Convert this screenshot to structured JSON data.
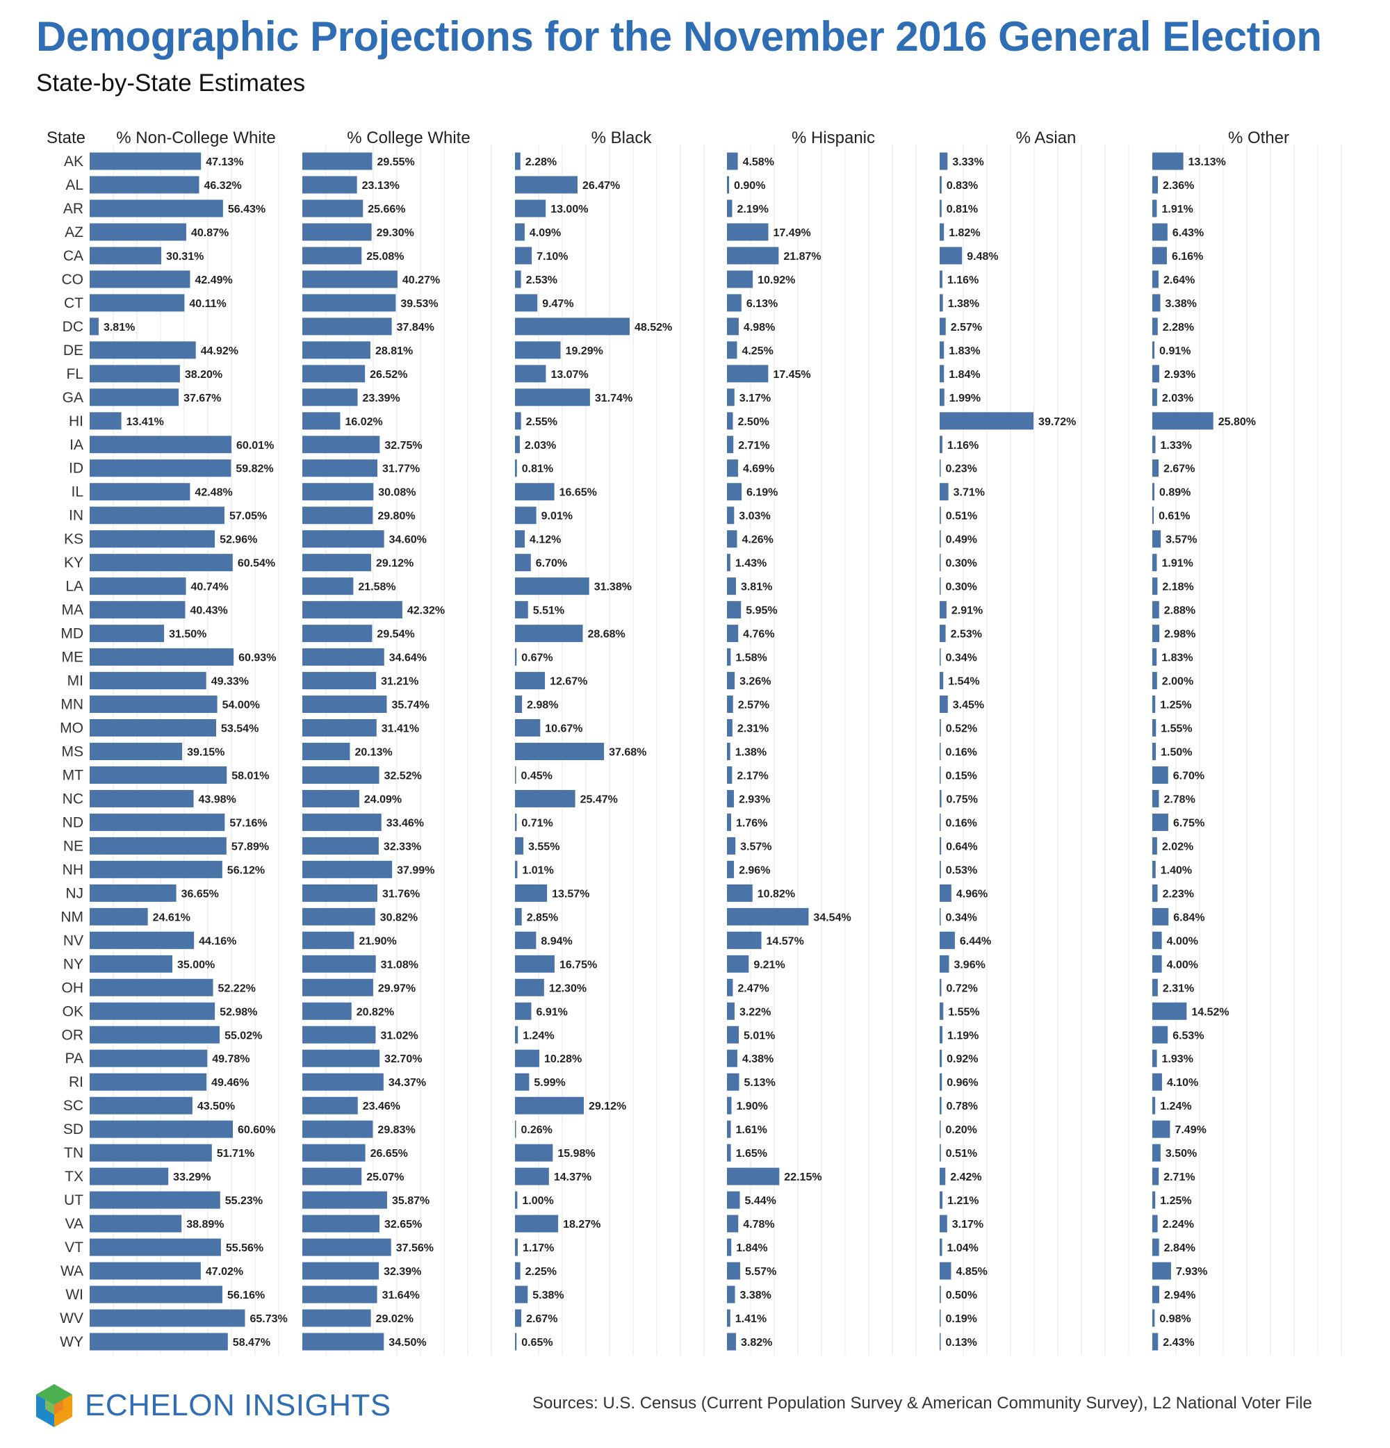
{
  "title": "Demographic Projections for the November 2016 General Election",
  "subtitle": "State-by-State Estimates",
  "brand": "ECHELON INSIGHTS",
  "sources": "Sources: U.S. Census (Current Population Survey & American Community Survey), L2 National Voter File",
  "colors": {
    "bar": "#4a74a8",
    "title": "#2f6db5",
    "grid": "#e6e6e6"
  },
  "chart_data": {
    "type": "bar",
    "orientation": "horizontal",
    "row_header": "State",
    "categories": [
      "AK",
      "AL",
      "AR",
      "AZ",
      "CA",
      "CO",
      "CT",
      "DC",
      "DE",
      "FL",
      "GA",
      "HI",
      "IA",
      "ID",
      "IL",
      "IN",
      "KS",
      "KY",
      "LA",
      "MA",
      "MD",
      "ME",
      "MI",
      "MN",
      "MO",
      "MS",
      "MT",
      "NC",
      "ND",
      "NE",
      "NH",
      "NJ",
      "NM",
      "NV",
      "NY",
      "OH",
      "OK",
      "OR",
      "PA",
      "RI",
      "SC",
      "SD",
      "TN",
      "TX",
      "UT",
      "VA",
      "VT",
      "WA",
      "WI",
      "WV",
      "WY"
    ],
    "series": [
      {
        "name": "% Non-College White",
        "values": [
          47.13,
          46.32,
          56.43,
          40.87,
          30.31,
          42.49,
          40.11,
          3.81,
          44.92,
          38.2,
          37.67,
          13.41,
          60.01,
          59.82,
          42.48,
          57.05,
          52.96,
          60.54,
          40.74,
          40.43,
          31.5,
          60.93,
          49.33,
          54.0,
          53.54,
          39.15,
          58.01,
          43.98,
          57.16,
          57.89,
          56.12,
          36.65,
          24.61,
          44.16,
          35.0,
          52.22,
          52.98,
          55.02,
          49.78,
          49.46,
          43.5,
          60.6,
          51.71,
          33.29,
          55.23,
          38.89,
          55.56,
          47.02,
          56.16,
          65.73,
          58.47
        ]
      },
      {
        "name": "% College White",
        "values": [
          29.55,
          23.13,
          25.66,
          29.3,
          25.08,
          40.27,
          39.53,
          37.84,
          28.81,
          26.52,
          23.39,
          16.02,
          32.75,
          31.77,
          30.08,
          29.8,
          34.6,
          29.12,
          21.58,
          42.32,
          29.54,
          34.64,
          31.21,
          35.74,
          31.41,
          20.13,
          32.52,
          24.09,
          33.46,
          32.33,
          37.99,
          31.76,
          30.82,
          21.9,
          31.08,
          29.97,
          20.82,
          31.02,
          32.7,
          34.37,
          23.46,
          29.83,
          26.65,
          25.07,
          35.87,
          32.65,
          37.56,
          32.39,
          31.64,
          29.02,
          34.5
        ]
      },
      {
        "name": "% Black",
        "values": [
          2.28,
          26.47,
          13.0,
          4.09,
          7.1,
          2.53,
          9.47,
          48.52,
          19.29,
          13.07,
          31.74,
          2.55,
          2.03,
          0.81,
          16.65,
          9.01,
          4.12,
          6.7,
          31.38,
          5.51,
          28.68,
          0.67,
          12.67,
          2.98,
          10.67,
          37.68,
          0.45,
          25.47,
          0.71,
          3.55,
          1.01,
          13.57,
          2.85,
          8.94,
          16.75,
          12.3,
          6.91,
          1.24,
          10.28,
          5.99,
          29.12,
          0.26,
          15.98,
          14.37,
          1.0,
          18.27,
          1.17,
          2.25,
          5.38,
          2.67,
          0.65
        ]
      },
      {
        "name": "% Hispanic",
        "values": [
          4.58,
          0.9,
          2.19,
          17.49,
          21.87,
          10.92,
          6.13,
          4.98,
          4.25,
          17.45,
          3.17,
          2.5,
          2.71,
          4.69,
          6.19,
          3.03,
          4.26,
          1.43,
          3.81,
          5.95,
          4.76,
          1.58,
          3.26,
          2.57,
          2.31,
          1.38,
          2.17,
          2.93,
          1.76,
          3.57,
          2.96,
          10.82,
          34.54,
          14.57,
          9.21,
          2.47,
          3.22,
          5.01,
          4.38,
          5.13,
          1.9,
          1.61,
          1.65,
          22.15,
          5.44,
          4.78,
          1.84,
          5.57,
          3.38,
          1.41,
          3.82
        ]
      },
      {
        "name": "% Asian",
        "values": [
          3.33,
          0.83,
          0.81,
          1.82,
          9.48,
          1.16,
          1.38,
          2.57,
          1.83,
          1.84,
          1.99,
          39.72,
          1.16,
          0.23,
          3.71,
          0.51,
          0.49,
          0.3,
          0.3,
          2.91,
          2.53,
          0.34,
          1.54,
          3.45,
          0.52,
          0.16,
          0.15,
          0.75,
          0.16,
          0.64,
          0.53,
          4.96,
          0.34,
          6.44,
          3.96,
          0.72,
          1.55,
          1.19,
          0.92,
          0.96,
          0.78,
          0.2,
          0.51,
          2.42,
          1.21,
          3.17,
          1.04,
          4.85,
          0.5,
          0.19,
          0.13
        ]
      },
      {
        "name": "% Other",
        "values": [
          13.13,
          2.36,
          1.91,
          6.43,
          6.16,
          2.64,
          3.38,
          2.28,
          0.91,
          2.93,
          2.03,
          25.8,
          1.33,
          2.67,
          0.89,
          0.61,
          3.57,
          1.91,
          2.18,
          2.88,
          2.98,
          1.83,
          2.0,
          1.25,
          1.55,
          1.5,
          6.7,
          2.78,
          6.75,
          2.02,
          1.4,
          2.23,
          6.84,
          4.0,
          4.0,
          2.31,
          14.52,
          6.53,
          1.93,
          4.1,
          1.24,
          7.49,
          3.5,
          2.71,
          1.25,
          2.24,
          2.84,
          7.93,
          2.94,
          0.98,
          2.43
        ]
      }
    ],
    "value_format": "percent, 2 decimals",
    "grid": true,
    "legend": "none"
  }
}
